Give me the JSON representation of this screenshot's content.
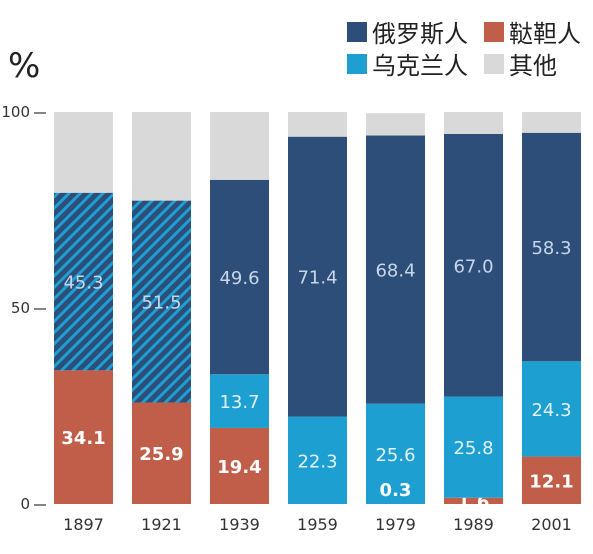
{
  "chart_data": {
    "type": "bar",
    "stacked": true,
    "unit": "%",
    "categories": [
      "1897",
      "1921",
      "1939",
      "1959",
      "1979",
      "1989",
      "2001"
    ],
    "series": [
      {
        "name": "鞑靼人",
        "color": "#c05e4a",
        "values": [
          34.1,
          25.9,
          19.4,
          0,
          0,
          1.6,
          12.1
        ],
        "labels": [
          "34.1",
          "25.9",
          "19.4",
          "",
          "",
          "1.6",
          "12.1"
        ]
      },
      {
        "name": "乌克兰人",
        "color": "#1e9fd2",
        "values": [
          0,
          0,
          13.7,
          22.3,
          25.6,
          25.8,
          24.3
        ],
        "labels": [
          "",
          "",
          "13.7",
          "22.3",
          "25.6",
          "25.8",
          "24.3"
        ]
      },
      {
        "name": "俄罗斯人",
        "color": "#2c4e79",
        "values": [
          45.3,
          51.5,
          49.6,
          71.4,
          68.4,
          67.0,
          58.3
        ],
        "labels": [
          "45.3",
          "51.5",
          "49.6",
          "71.4",
          "68.4",
          "67.0",
          "58.3"
        ],
        "hatched_categories": [
          "1897",
          "1921"
        ]
      },
      {
        "name": "其他",
        "color": "#d9d9d9",
        "values": [
          20.6,
          22.6,
          17.3,
          6.3,
          5.7,
          5.6,
          5.3
        ],
        "labels": [
          "",
          "",
          "",
          "",
          "",
          "",
          ""
        ]
      }
    ],
    "extra_labels": [
      {
        "category": "1979",
        "value": "0.3"
      }
    ],
    "yticks": [
      "0",
      "50",
      "100"
    ],
    "ylim": [
      0,
      100
    ]
  },
  "legend": [
    {
      "name": "俄罗斯人",
      "color": "#2c4e79"
    },
    {
      "name": "鞑靼人",
      "color": "#c05e4a"
    },
    {
      "name": "乌克兰人",
      "color": "#1e9fd2"
    },
    {
      "name": "其他",
      "color": "#d9d9d9"
    }
  ]
}
